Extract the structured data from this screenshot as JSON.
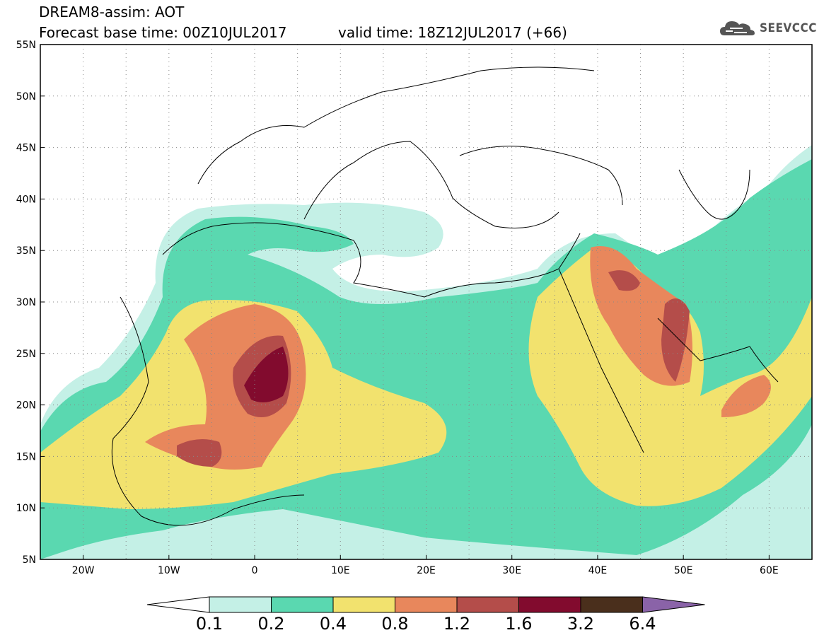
{
  "header": {
    "title": "DREAM8-assim: AOT",
    "forecast_base": "Forecast base time: 00Z10JUL2017",
    "valid_time": "valid time: 18Z12JUL2017 (+66)",
    "logo_text": "SEEVCCC"
  },
  "map": {
    "lon_range": [
      -25,
      65
    ],
    "lat_range": [
      5,
      55
    ],
    "lat_ticks": [
      "55N",
      "50N",
      "45N",
      "40N",
      "35N",
      "30N",
      "25N",
      "20N",
      "15N",
      "10N",
      "5N"
    ],
    "lon_ticks": [
      "20W",
      "10W",
      "0",
      "10E",
      "20E",
      "30E",
      "40E",
      "50E",
      "60E"
    ],
    "lat_tick_values": [
      55,
      50,
      45,
      40,
      35,
      30,
      25,
      20,
      15,
      10,
      5
    ],
    "lon_tick_values": [
      -20,
      -10,
      0,
      10,
      20,
      30,
      40,
      50,
      60
    ],
    "graticule": "dotted every 5 degrees"
  },
  "colorbar": {
    "labels": [
      "0.1",
      "0.2",
      "0.4",
      "0.8",
      "1.2",
      "1.6",
      "3.2",
      "6.4"
    ],
    "colors": [
      "#c4f0e6",
      "#5ad8b0",
      "#f2e26e",
      "#e8875c",
      "#b44d4a",
      "#820b2e",
      "#4a2f1c"
    ],
    "under_color": "#ffffff",
    "over_color": "#8a63a8"
  },
  "legend_colors": {
    "c01": "#c4f0e6",
    "c02": "#5ad8b0",
    "c04": "#f2e26e",
    "c08": "#e8875c",
    "c12": "#b44d4a",
    "c16": "#820b2e"
  }
}
